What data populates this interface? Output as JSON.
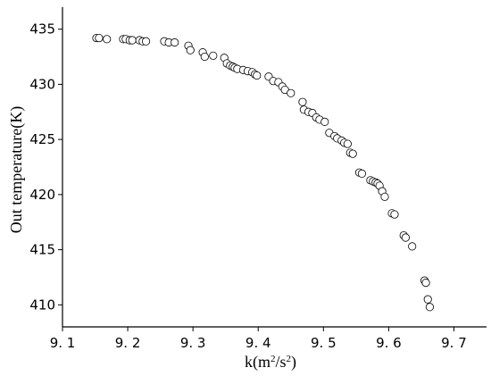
{
  "chart_data": {
    "type": "scatter",
    "title": "",
    "xlabel": "k(m²/s²)",
    "ylabel": "Out temperature(K)",
    "xlim": [
      9.1,
      9.75
    ],
    "ylim": [
      408,
      437
    ],
    "x_ticks": [
      9.1,
      9.2,
      9.3,
      9.4,
      9.5,
      9.6,
      9.7
    ],
    "x_tick_labels": [
      "9. 1",
      "9. 2",
      "9. 3",
      "9. 4",
      "9. 5",
      "9. 6",
      "9. 7"
    ],
    "y_ticks": [
      410,
      415,
      420,
      425,
      430,
      435
    ],
    "y_tick_labels": [
      "410",
      "415",
      "420",
      "425",
      "430",
      "435"
    ],
    "grid": false,
    "legend": "none",
    "marker": "open-circle",
    "x": [
      9.152,
      9.156,
      9.168,
      9.193,
      9.197,
      9.203,
      9.207,
      9.218,
      9.223,
      9.228,
      9.256,
      9.263,
      9.272,
      9.293,
      9.296,
      9.315,
      9.318,
      9.331,
      9.348,
      9.352,
      9.357,
      9.361,
      9.364,
      9.368,
      9.377,
      9.384,
      9.391,
      9.395,
      9.398,
      9.416,
      9.423,
      9.431,
      9.437,
      9.441,
      9.45,
      9.468,
      9.47,
      9.477,
      9.483,
      9.489,
      9.494,
      9.502,
      9.509,
      9.517,
      9.521,
      9.528,
      9.532,
      9.537,
      9.541,
      9.545,
      9.555,
      9.559,
      9.572,
      9.576,
      9.58,
      9.583,
      9.586,
      9.59,
      9.594,
      9.605,
      9.609,
      9.623,
      9.626,
      9.636,
      9.655,
      9.657,
      9.66,
      9.663
    ],
    "y": [
      434.2,
      434.2,
      434.1,
      434.1,
      434.1,
      434.0,
      434.0,
      434.0,
      433.9,
      433.9,
      433.9,
      433.8,
      433.8,
      433.5,
      433.1,
      432.9,
      432.5,
      432.6,
      432.4,
      431.9,
      431.7,
      431.6,
      431.5,
      431.4,
      431.3,
      431.2,
      431.1,
      430.9,
      430.8,
      430.7,
      430.3,
      430.2,
      429.8,
      429.5,
      429.2,
      428.4,
      427.7,
      427.5,
      427.4,
      427.0,
      426.8,
      426.6,
      425.6,
      425.3,
      425.1,
      424.9,
      424.7,
      424.6,
      423.8,
      423.7,
      422.0,
      421.9,
      421.3,
      421.2,
      421.1,
      421.0,
      420.8,
      420.3,
      419.8,
      418.3,
      418.2,
      416.3,
      416.1,
      415.3,
      412.2,
      412.0,
      410.5,
      409.8
    ]
  }
}
